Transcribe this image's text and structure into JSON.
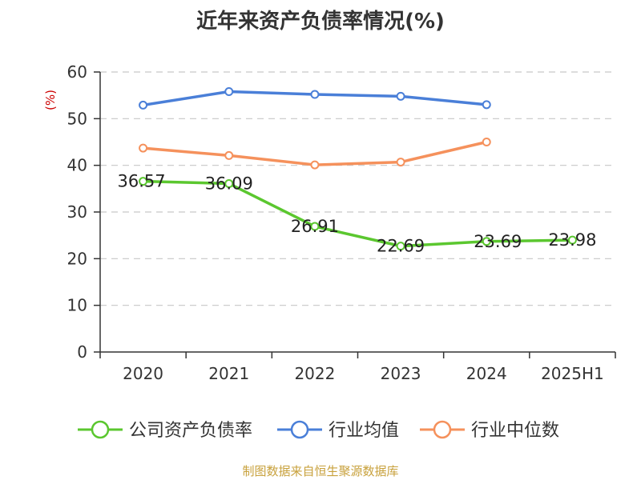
{
  "chart_data": {
    "type": "line",
    "title": "近年来资产负债率情况(%)",
    "ylabel": "(%)",
    "categories": [
      "2020",
      "2021",
      "2022",
      "2023",
      "2024",
      "2025H1"
    ],
    "ylim": [
      0,
      60
    ],
    "yticks": [
      0,
      10,
      20,
      30,
      40,
      50,
      60
    ],
    "grid": true,
    "legend_position": "bottom",
    "series": [
      {
        "name": "公司资产负债率",
        "color": "#5bc72f",
        "values": [
          36.57,
          36.09,
          26.91,
          22.69,
          23.69,
          23.98
        ],
        "labels": [
          "36.57",
          "36.09",
          "26.91",
          "22.69",
          "23.69",
          "23.98"
        ]
      },
      {
        "name": "行业均值",
        "color": "#4a7fd8",
        "values": [
          52.9,
          55.8,
          55.2,
          54.8,
          53.0,
          null
        ]
      },
      {
        "name": "行业中位数",
        "color": "#f5915c",
        "values": [
          43.7,
          42.1,
          40.1,
          40.7,
          45.0,
          null
        ]
      }
    ]
  },
  "source": "制图数据来自恒生聚源数据库"
}
